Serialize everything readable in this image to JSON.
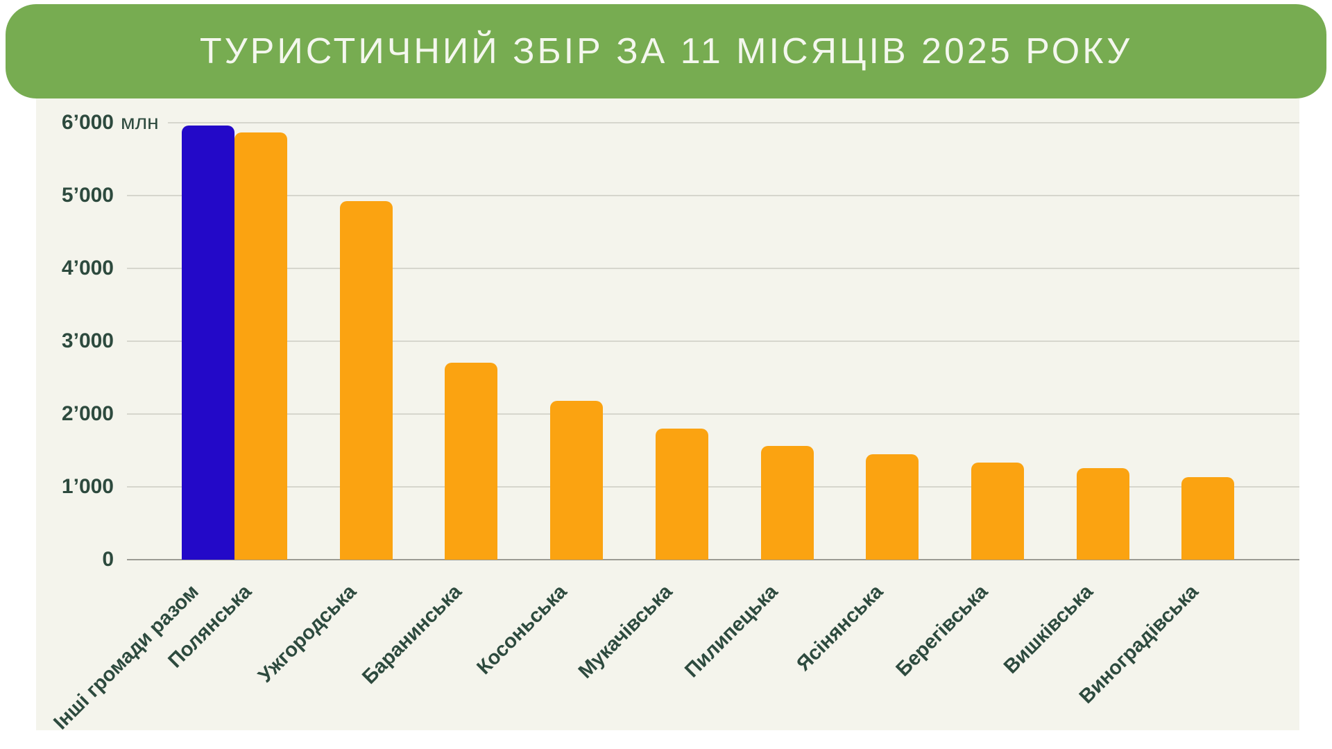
{
  "title": "ТУРИСТИЧНИЙ ЗБІР ЗА 11 МІСЯЦІВ 2025 РОКУ",
  "colors": {
    "banner_green": "#77ac51",
    "title_text": "#f4f7ee",
    "panel_cream": "#f4f4ec",
    "bar_orange": "#fba311",
    "bar_blue": "#2309c8",
    "axis_text": "#2d4a3e",
    "gridline": "#d6d6cd",
    "baseline": "#9b9b94"
  },
  "chart_data": {
    "type": "bar",
    "title": "ТУРИСТИЧНИЙ ЗБІР ЗА 11 МІСЯЦІВ 2025 РОКУ",
    "categories": [
      "Інші громади разом",
      "Полянська",
      "Ужгородська",
      "Баранинська",
      "Косоньська",
      "Мукачівська",
      "Пилипецька",
      "Ясінянська",
      "Берегівська",
      "Вишківська",
      "Виноградівська"
    ],
    "values": [
      5960,
      5870,
      4920,
      2700,
      2180,
      1800,
      1560,
      1450,
      1330,
      1260,
      1130
    ],
    "highlighted_category_index": 0,
    "xlabel": "",
    "ylabel": "млн",
    "y_unit_label": "млн",
    "y_ticks": [
      "0",
      "1’000",
      "2’000",
      "3’000",
      "4’000",
      "5’000",
      "6’000"
    ],
    "ylim": [
      0,
      6000
    ],
    "grid": true,
    "legend": false,
    "x_tick_rotation_deg": 45
  }
}
